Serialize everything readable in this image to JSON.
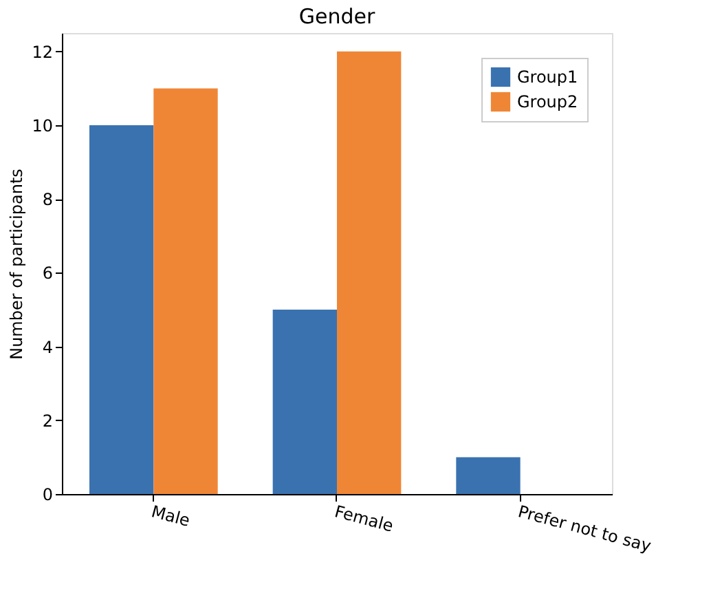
{
  "chart_data": {
    "type": "bar",
    "title": "Gender",
    "ylabel": "Number of participants",
    "categories": [
      "Male",
      "Female",
      "Prefer not to say"
    ],
    "series": [
      {
        "name": "Group1",
        "color": "#3a72b0",
        "values": [
          10,
          5,
          1
        ]
      },
      {
        "name": "Group2",
        "color": "#ef8636",
        "values": [
          11,
          12,
          0
        ]
      }
    ],
    "ylim": [
      0,
      12.5
    ],
    "yticks": [
      0,
      2,
      4,
      6,
      8,
      10,
      12
    ],
    "grid": false,
    "legend": "top right"
  }
}
